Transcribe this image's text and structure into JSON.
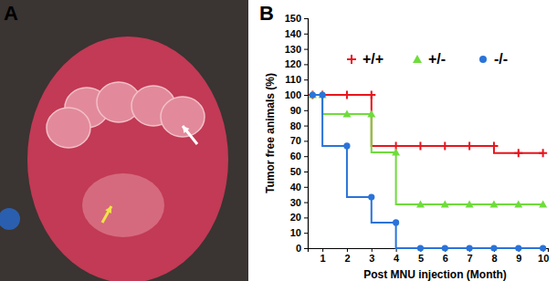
{
  "chart_data": {
    "type": "line",
    "x_label": "Post MNU injection (Month)",
    "y_label": "Tumor free animals (%)",
    "x": [
      0.6,
      1,
      2,
      3,
      4,
      5,
      6,
      7,
      8,
      9,
      10
    ],
    "series": [
      {
        "name": "+/+",
        "color": "#e8141c",
        "marker": "plus",
        "line_style": "step",
        "values": [
          100,
          100,
          100,
          100,
          66.7,
          66.7,
          66.7,
          66.7,
          66.7,
          62,
          62
        ]
      },
      {
        "name": "+/-",
        "color": "#6fdc3c",
        "marker": "triangle",
        "line_style": "step",
        "values": [
          100,
          100,
          87.5,
          87.5,
          62.5,
          28.6,
          28.6,
          28.6,
          28.6,
          28.6,
          28.6
        ]
      },
      {
        "name": "-/-",
        "color": "#2a73d9",
        "marker": "circle",
        "line_style": "step",
        "values": [
          100,
          100,
          66.7,
          33.3,
          16.7,
          0,
          0,
          0,
          0,
          0,
          0
        ]
      }
    ],
    "xlim": [
      0.4,
      10.2
    ],
    "ylim": [
      0,
      150
    ],
    "xticks": [
      1,
      2,
      3,
      4,
      5,
      6,
      7,
      8,
      9,
      10
    ],
    "yticks": [
      0,
      10,
      20,
      30,
      40,
      50,
      60,
      70,
      80,
      90,
      100,
      110,
      120,
      130,
      140,
      150
    ],
    "grid": false,
    "legend": "top"
  },
  "panel_labels": [
    "A",
    "B"
  ]
}
